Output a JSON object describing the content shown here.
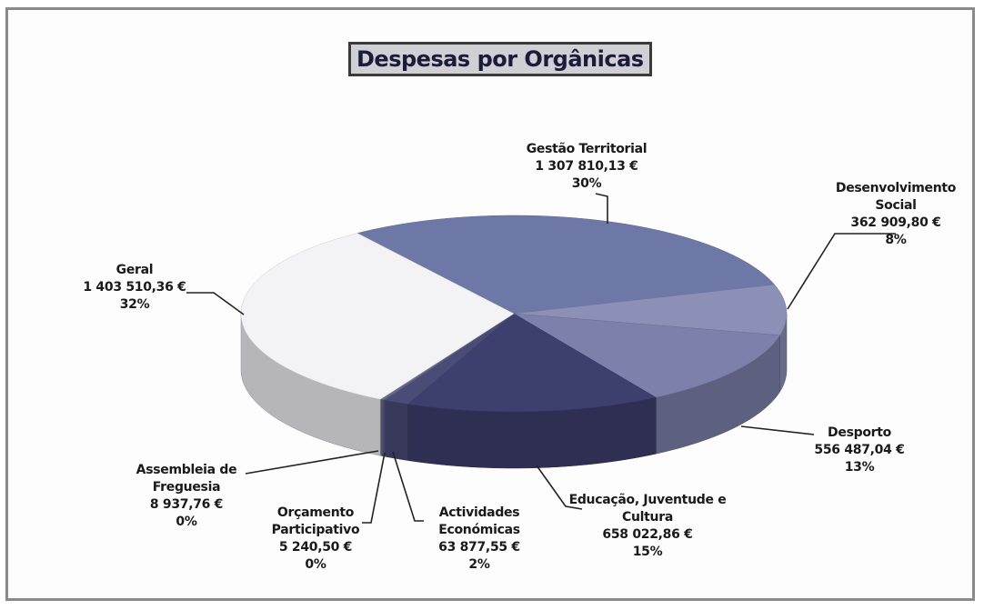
{
  "chart_data": {
    "type": "pie3d",
    "title": "Despesas por Orgânicas",
    "categories": [
      "Gestão Territorial",
      "Desenvolvimento Social",
      "Desporto",
      "Educação, Juventude e Cultura",
      "Actividades Económicas",
      "Orçamento Participativo",
      "Assembleia de Freguesia",
      "Geral"
    ],
    "values": [
      1307810.13,
      362909.8,
      556487.04,
      658022.86,
      63877.55,
      5240.5,
      8937.76,
      1403510.36
    ],
    "value_labels": [
      "1 307 810,13 €",
      "362 909,80 €",
      "556 487,04 €",
      "658 022,86 €",
      "63 877,55 €",
      "5 240,50 €",
      "8 937,76 €",
      "1 403 510,36 €"
    ],
    "percent_labels": [
      "30%",
      "8%",
      "13%",
      "15%",
      "2%",
      "0%",
      "0%",
      "32%"
    ],
    "colors": [
      "#6e78a6",
      "#8c90b6",
      "#7d80ab",
      "#3d3f6e",
      "#4a4c78",
      "#5a5c86",
      "#6a6c90",
      "#f3f3f5"
    ]
  }
}
